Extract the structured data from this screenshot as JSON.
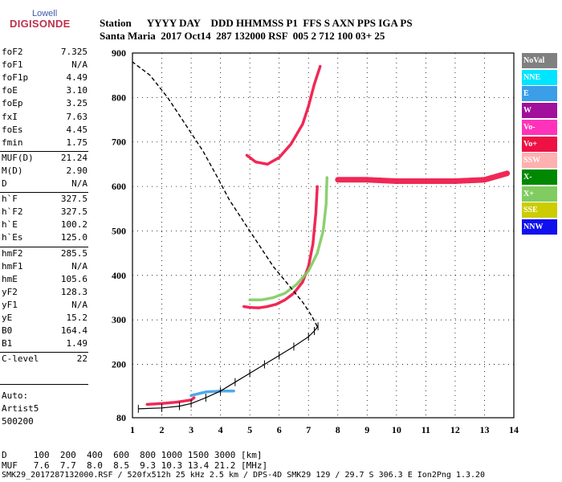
{
  "logo": {
    "top": "Lowell",
    "bottom": "DIGISONDE"
  },
  "header": {
    "labels": "Station      YYYY DAY    DDD HHMMSS P1  FFS S AXN PPS IGA PS",
    "values": "Santa Maria  2017 Oct14  287 132000 RSF  005 2 712 100 03+ 25"
  },
  "params": [
    {
      "label": "foF2",
      "value": "7.325"
    },
    {
      "label": "foF1",
      "value": "N/A"
    },
    {
      "label": "foF1p",
      "value": "4.49"
    },
    {
      "label": "foE",
      "value": "3.10"
    },
    {
      "label": "foEp",
      "value": "3.25"
    },
    {
      "label": "fxI",
      "value": "7.63"
    },
    {
      "label": "foEs",
      "value": "4.45"
    },
    {
      "label": "fmin",
      "value": "1.75"
    },
    {
      "label": "MUF(D)",
      "value": "21.24"
    },
    {
      "label": "M(D)",
      "value": "2.90"
    },
    {
      "label": "D",
      "value": "N/A"
    },
    {
      "label": "h`F",
      "value": "327.5"
    },
    {
      "label": "h`F2",
      "value": "327.5"
    },
    {
      "label": "h`E",
      "value": "100.2"
    },
    {
      "label": "h`Es",
      "value": "125.0"
    },
    {
      "label": "hmF2",
      "value": "285.5"
    },
    {
      "label": "hmF1",
      "value": "N/A"
    },
    {
      "label": "hmE",
      "value": "105.6"
    },
    {
      "label": "yF2",
      "value": "128.3"
    },
    {
      "label": "yF1",
      "value": "N/A"
    },
    {
      "label": "yE",
      "value": "15.2"
    },
    {
      "label": "B0",
      "value": "164.4"
    },
    {
      "label": "B1",
      "value": "1.49"
    },
    {
      "label": "C-level",
      "value": "22"
    }
  ],
  "autoscaling": {
    "line1": "Auto:",
    "line2": "Artist5",
    "line3": "500200"
  },
  "legend": [
    {
      "label": "NoVal",
      "color": "#808080"
    },
    {
      "label": "NNE",
      "color": "#00e5ff"
    },
    {
      "label": "E",
      "color": "#3a9ee8"
    },
    {
      "label": "W",
      "color": "#a0109a"
    },
    {
      "label": "Vo-",
      "color": "#ff33bb"
    },
    {
      "label": "Vo+",
      "color": "#ee1144"
    },
    {
      "label": "SSW",
      "color": "#ffb0b0"
    },
    {
      "label": "X-",
      "color": "#008800"
    },
    {
      "label": "X+",
      "color": "#80cc60"
    },
    {
      "label": "SSE",
      "color": "#cccc00"
    },
    {
      "label": "NNW",
      "color": "#1010ee"
    }
  ],
  "footer": {
    "d_line": "D     100  200  400  600  800 1000 1500 3000 [km]",
    "muf_line": "MUF   7.6  7.7  8.0  8.5  9.3 10.3 13.4 21.2 [MHz]",
    "file_line": "SMK29_2017287132000.RSF / 520fx512h 25 kHz 2.5 km / DPS-4D SMK29 129 / 29.7 S 306.3 E Ion2Png 1.3.20"
  },
  "chart_data": {
    "type": "scatter",
    "xlim": [
      1,
      14
    ],
    "ylim": [
      80,
      900
    ],
    "xticks": [
      1,
      2,
      3,
      4,
      5,
      6,
      7,
      8,
      9,
      10,
      11,
      12,
      13,
      14
    ],
    "yticks": [
      80,
      200,
      300,
      400,
      500,
      600,
      700,
      800,
      900
    ],
    "grid": true,
    "xlabel": "",
    "ylabel": "",
    "traces": [
      {
        "mode": "O",
        "color": "#ee1144",
        "points": [
          [
            4.8,
            330
          ],
          [
            5.0,
            328
          ],
          [
            5.3,
            327
          ],
          [
            5.6,
            330
          ],
          [
            5.9,
            335
          ],
          [
            6.2,
            345
          ],
          [
            6.5,
            360
          ],
          [
            6.8,
            385
          ],
          [
            7.0,
            420
          ],
          [
            7.15,
            470
          ],
          [
            7.25,
            540
          ],
          [
            7.3,
            600
          ]
        ]
      },
      {
        "mode": "X",
        "color": "#80cc60",
        "points": [
          [
            5.0,
            345
          ],
          [
            5.4,
            345
          ],
          [
            5.8,
            350
          ],
          [
            6.2,
            360
          ],
          [
            6.6,
            380
          ],
          [
            7.0,
            410
          ],
          [
            7.3,
            450
          ],
          [
            7.5,
            500
          ],
          [
            7.6,
            560
          ],
          [
            7.63,
            620
          ]
        ]
      },
      {
        "mode": "F2-second-hop",
        "color": "#ee1144",
        "points": [
          [
            4.9,
            670
          ],
          [
            5.2,
            655
          ],
          [
            5.6,
            650
          ],
          [
            6.0,
            665
          ],
          [
            6.4,
            695
          ],
          [
            6.8,
            740
          ],
          [
            7.0,
            780
          ],
          [
            7.2,
            830
          ],
          [
            7.4,
            870
          ]
        ]
      },
      {
        "mode": "E-layer",
        "color": "#ee1144",
        "points": [
          [
            1.5,
            110
          ],
          [
            2.0,
            112
          ],
          [
            2.5,
            115
          ],
          [
            3.0,
            120
          ],
          [
            3.1,
            125
          ]
        ]
      },
      {
        "mode": "Es",
        "color": "#3a9ee8",
        "points": [
          [
            3.0,
            130
          ],
          [
            3.5,
            138
          ],
          [
            4.0,
            140
          ],
          [
            4.45,
            140
          ]
        ]
      },
      {
        "mode": "spread-F",
        "color": "#ee1144",
        "points": [
          [
            8.0,
            615
          ],
          [
            9.0,
            615
          ],
          [
            10.0,
            612
          ],
          [
            11.0,
            612
          ],
          [
            12.0,
            612
          ],
          [
            13.0,
            615
          ],
          [
            13.8,
            630
          ]
        ]
      }
    ],
    "profile": {
      "points": [
        [
          1.2,
          100
        ],
        [
          2.0,
          102
        ],
        [
          2.6,
          106
        ],
        [
          3.0,
          112
        ],
        [
          3.5,
          125
        ],
        [
          4.0,
          140
        ],
        [
          4.5,
          160
        ],
        [
          5.0,
          180
        ],
        [
          5.5,
          200
        ],
        [
          6.0,
          220
        ],
        [
          6.5,
          240
        ],
        [
          7.0,
          262
        ],
        [
          7.2,
          275
        ],
        [
          7.325,
          285.5
        ]
      ]
    },
    "scaled_trace": {
      "points": [
        [
          7.3,
          285
        ],
        [
          7.1,
          310
        ],
        [
          6.8,
          340
        ],
        [
          6.3,
          380
        ],
        [
          5.8,
          420
        ],
        [
          5.3,
          470
        ],
        [
          4.8,
          520
        ],
        [
          4.3,
          570
        ],
        [
          3.9,
          620
        ],
        [
          3.4,
          680
        ],
        [
          2.8,
          740
        ],
        [
          2.2,
          800
        ],
        [
          1.6,
          850
        ],
        [
          1.0,
          880
        ]
      ]
    }
  }
}
